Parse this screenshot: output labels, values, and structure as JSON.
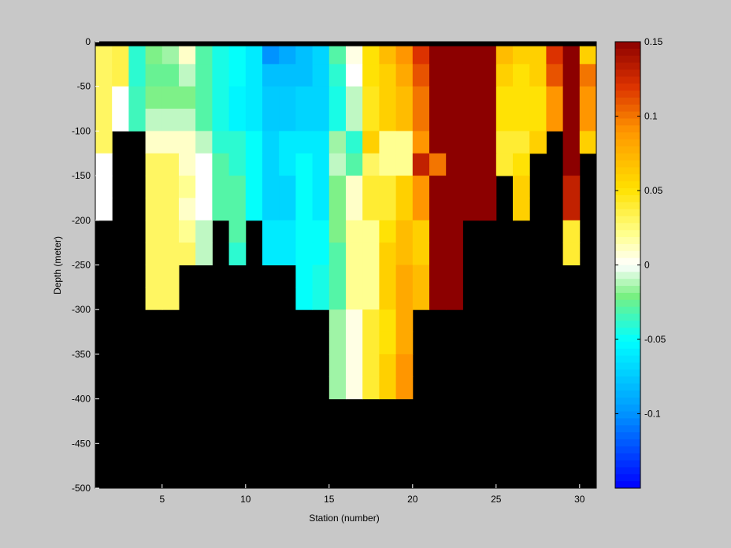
{
  "chart_data": {
    "type": "heatmap",
    "xlabel": "Station (number)",
    "ylabel": "Depth (meter)",
    "xlim": [
      1,
      31
    ],
    "ylim": [
      -500,
      0
    ],
    "xticks": [
      5,
      10,
      15,
      20,
      25,
      30
    ],
    "yticks": [
      0,
      -50,
      -100,
      -150,
      -200,
      -250,
      -300,
      -350,
      -400,
      -450,
      -500
    ],
    "colorbar": {
      "clim": [
        -0.15,
        0.15
      ],
      "ticks": [
        0.15,
        0.1,
        0.05,
        0,
        -0.05,
        -0.1
      ],
      "tick_labels": [
        "0.15",
        "0.1",
        "0.05",
        "0",
        "-0.05",
        "-0.1"
      ],
      "colormap": "jet-white-center"
    },
    "background_color": "#000000",
    "station_max_depth": [
      200,
      200,
      100,
      100,
      300,
      300,
      250,
      200,
      250,
      200,
      250,
      250,
      300,
      300,
      400,
      400,
      400,
      400,
      400,
      400,
      300,
      300,
      200,
      200,
      150,
      200,
      100,
      150,
      250,
      125
    ],
    "depth_rows": [
      0,
      -25,
      -50,
      -75,
      -100,
      -125,
      -150,
      -175,
      -200,
      -225,
      -250,
      -275,
      -300,
      -325,
      -350,
      -375,
      -400
    ],
    "values": [
      [
        0.03,
        0.035,
        -0.04,
        -0.02,
        -0.015,
        0.01,
        -0.03,
        -0.045,
        -0.05,
        -0.06,
        -0.1,
        -0.09,
        -0.08,
        -0.07,
        -0.03,
        0.005,
        0.05,
        0.07,
        0.09,
        0.12,
        0.15,
        0.15,
        0.15,
        0.15,
        0.07,
        0.06,
        0.06,
        0.12,
        0.15,
        0.06
      ],
      [
        0.03,
        0.035,
        -0.04,
        -0.025,
        -0.025,
        -0.01,
        -0.03,
        -0.045,
        -0.05,
        -0.06,
        -0.08,
        -0.08,
        -0.08,
        -0.07,
        -0.04,
        0.0,
        0.05,
        0.06,
        0.08,
        0.11,
        0.15,
        0.15,
        0.15,
        0.15,
        0.06,
        0.05,
        0.06,
        0.11,
        0.15,
        0.1
      ],
      [
        0.03,
        0.0,
        -0.035,
        -0.02,
        -0.02,
        -0.02,
        -0.03,
        -0.045,
        -0.055,
        -0.06,
        -0.075,
        -0.075,
        -0.07,
        -0.07,
        -0.045,
        -0.01,
        0.045,
        0.06,
        0.07,
        0.1,
        0.15,
        0.15,
        0.15,
        0.15,
        0.05,
        0.05,
        0.05,
        0.09,
        0.15,
        0.09
      ],
      [
        0.03,
        0.0,
        -0.035,
        -0.01,
        -0.01,
        -0.01,
        -0.03,
        -0.045,
        -0.055,
        -0.06,
        -0.075,
        -0.075,
        -0.07,
        -0.07,
        -0.045,
        -0.01,
        0.045,
        0.06,
        0.07,
        0.1,
        0.15,
        0.15,
        0.15,
        0.15,
        0.05,
        0.05,
        0.05,
        0.09,
        0.15,
        0.09
      ],
      [
        0.03,
        null,
        null,
        0.01,
        0.01,
        0.01,
        -0.01,
        -0.04,
        -0.04,
        -0.05,
        -0.07,
        -0.06,
        -0.06,
        -0.06,
        -0.015,
        -0.04,
        0.06,
        0.02,
        0.02,
        0.09,
        0.15,
        0.15,
        0.15,
        0.15,
        0.04,
        0.04,
        0.06,
        null,
        0.15,
        0.06
      ],
      [
        0.0,
        null,
        null,
        0.03,
        0.03,
        0.01,
        0.0,
        -0.03,
        -0.04,
        -0.05,
        -0.07,
        -0.06,
        -0.05,
        -0.06,
        -0.01,
        -0.03,
        0.03,
        0.02,
        0.02,
        0.13,
        0.1,
        0.15,
        0.15,
        0.15,
        0.04,
        0.05,
        null,
        null,
        0.15,
        null
      ],
      [
        0.0,
        null,
        null,
        0.03,
        0.03,
        0.02,
        0.0,
        -0.03,
        -0.03,
        -0.05,
        -0.07,
        -0.07,
        -0.05,
        -0.06,
        -0.02,
        0.01,
        0.04,
        0.04,
        0.06,
        0.09,
        0.15,
        0.15,
        0.15,
        0.15,
        null,
        0.06,
        null,
        null,
        0.13,
        null
      ],
      [
        0.0,
        null,
        null,
        0.03,
        0.03,
        0.01,
        0.0,
        -0.03,
        -0.03,
        -0.05,
        -0.07,
        -0.07,
        -0.05,
        -0.06,
        -0.02,
        0.01,
        0.04,
        0.04,
        0.06,
        0.09,
        0.15,
        0.15,
        0.15,
        0.15,
        null,
        0.06,
        null,
        null,
        0.13,
        null
      ],
      [
        null,
        null,
        null,
        0.03,
        0.03,
        0.02,
        -0.01,
        null,
        -0.03,
        null,
        -0.06,
        -0.06,
        -0.05,
        -0.05,
        -0.02,
        0.02,
        0.02,
        0.05,
        0.07,
        0.06,
        0.15,
        0.15,
        null,
        null,
        null,
        null,
        null,
        null,
        0.04,
        null
      ],
      [
        null,
        null,
        null,
        0.03,
        0.03,
        0.03,
        -0.01,
        null,
        -0.04,
        null,
        -0.06,
        -0.06,
        -0.05,
        -0.05,
        -0.03,
        0.02,
        0.02,
        0.06,
        0.07,
        0.06,
        0.15,
        0.15,
        null,
        null,
        null,
        null,
        null,
        null,
        0.04,
        null
      ],
      [
        null,
        null,
        null,
        0.03,
        0.03,
        null,
        null,
        null,
        null,
        null,
        null,
        null,
        -0.05,
        -0.045,
        -0.03,
        0.02,
        0.02,
        0.06,
        0.08,
        0.07,
        0.15,
        0.15,
        null,
        null,
        null,
        null,
        null,
        null,
        null,
        null
      ],
      [
        null,
        null,
        null,
        0.03,
        0.03,
        null,
        null,
        null,
        null,
        null,
        null,
        null,
        -0.05,
        -0.045,
        -0.03,
        0.02,
        0.02,
        0.06,
        0.08,
        0.07,
        0.15,
        0.15,
        null,
        null,
        null,
        null,
        null,
        null,
        null,
        null
      ],
      [
        null,
        null,
        null,
        null,
        null,
        null,
        null,
        null,
        null,
        null,
        null,
        null,
        null,
        null,
        -0.015,
        0.005,
        0.04,
        0.05,
        0.08,
        null,
        null,
        null,
        null,
        null,
        null,
        null,
        null,
        null,
        null,
        null
      ],
      [
        null,
        null,
        null,
        null,
        null,
        null,
        null,
        null,
        null,
        null,
        null,
        null,
        null,
        null,
        -0.015,
        0.005,
        0.04,
        0.05,
        0.08,
        null,
        null,
        null,
        null,
        null,
        null,
        null,
        null,
        null,
        null,
        null
      ],
      [
        null,
        null,
        null,
        null,
        null,
        null,
        null,
        null,
        null,
        null,
        null,
        null,
        null,
        null,
        -0.015,
        0.005,
        0.04,
        0.06,
        0.09,
        null,
        null,
        null,
        null,
        null,
        null,
        null,
        null,
        null,
        null,
        null
      ],
      [
        null,
        null,
        null,
        null,
        null,
        null,
        null,
        null,
        null,
        null,
        null,
        null,
        null,
        null,
        -0.015,
        0.005,
        0.04,
        0.06,
        0.09,
        null,
        null,
        null,
        null,
        null,
        null,
        null,
        null,
        null,
        null,
        null
      ]
    ]
  }
}
